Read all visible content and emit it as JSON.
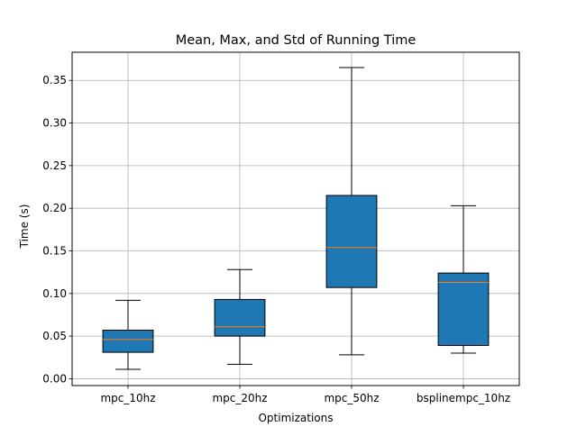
{
  "chart_data": {
    "type": "box",
    "title": "Mean, Max, and Std of Running Time",
    "xlabel": "Optimizations",
    "ylabel": "Time (s)",
    "categories": [
      "mpc_10hz",
      "mpc_20hz",
      "mpc_50hz",
      "bsplinempc_10hz"
    ],
    "boxes": [
      {
        "whisker_low": 0.011,
        "q1": 0.031,
        "median": 0.046,
        "q3": 0.057,
        "whisker_high": 0.092
      },
      {
        "whisker_low": 0.017,
        "q1": 0.05,
        "median": 0.061,
        "q3": 0.093,
        "whisker_high": 0.128
      },
      {
        "whisker_low": 0.028,
        "q1": 0.107,
        "median": 0.154,
        "q3": 0.215,
        "whisker_high": 0.365
      },
      {
        "whisker_low": 0.03,
        "q1": 0.039,
        "median": 0.113,
        "q3": 0.124,
        "whisker_high": 0.203
      }
    ],
    "ylim": [
      -0.008,
      0.383
    ],
    "yticks": [
      0.0,
      0.05,
      0.1,
      0.15,
      0.2,
      0.25,
      0.3,
      0.35
    ],
    "ytick_labels": [
      "0.00",
      "0.05",
      "0.10",
      "0.15",
      "0.20",
      "0.25",
      "0.30",
      "0.35"
    ],
    "grid": true,
    "colors": {
      "box_fill": "#1f77b4",
      "box_edge": "#000000",
      "median": "#ff7f0e",
      "grid": "#b0b0b0"
    }
  }
}
